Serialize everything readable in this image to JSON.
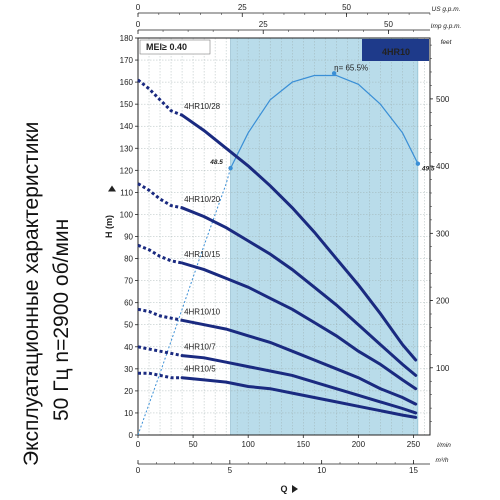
{
  "side_title": {
    "line1": "Эксплуатационные характеристики",
    "line2": "50 Гц  n=2900 об/мин"
  },
  "colors": {
    "curve": "#1a2a80",
    "efficiency": "#3a8fd6",
    "band": "#b9dcea",
    "badge": "#1e3a8a"
  },
  "chart_data": {
    "type": "line",
    "badge": "4HR10",
    "mei": "MEI≥ 0.40",
    "y_left_label": "H (m)",
    "y_left_ticks": [
      "0",
      "10",
      "20",
      "30",
      "40",
      "50",
      "60",
      "70",
      "80",
      "90",
      "100",
      "110",
      "120",
      "130",
      "140",
      "150",
      "160",
      "170",
      "180"
    ],
    "y_right_label": "feet",
    "y_right_ticks": [
      "100",
      "200",
      "300",
      "400",
      "500"
    ],
    "x_bottom_label": "Q",
    "x_lmin_unit": "l/min",
    "x_lmin_ticks": [
      "0",
      "50",
      "100",
      "150",
      "200",
      "250"
    ],
    "x_m3h_unit": "m³/h",
    "x_m3h_ticks": [
      "0",
      "5",
      "10",
      "15"
    ],
    "x_us_unit": "US g.p.m.",
    "x_us_ticks": [
      "0",
      "25",
      "50"
    ],
    "x_imp_unit": "Imp g.p.m.",
    "x_imp_ticks": [
      "0",
      "25",
      "50"
    ],
    "xlim": [
      0,
      265
    ],
    "ylim": [
      0,
      180
    ],
    "band": [
      84,
      254
    ],
    "series": [
      {
        "name": "4HR10/28",
        "dashed": [
          [
            0,
            161
          ],
          [
            10,
            157
          ],
          [
            20,
            152
          ],
          [
            30,
            147
          ],
          [
            40,
            145
          ]
        ],
        "solid": [
          [
            40,
            145
          ],
          [
            60,
            138
          ],
          [
            80,
            130
          ],
          [
            100,
            122
          ],
          [
            120,
            113
          ],
          [
            140,
            103
          ],
          [
            160,
            92
          ],
          [
            180,
            80
          ],
          [
            200,
            68
          ],
          [
            220,
            55
          ],
          [
            240,
            41
          ],
          [
            252,
            34
          ]
        ]
      },
      {
        "name": "4HR10/20",
        "dashed": [
          [
            0,
            114
          ],
          [
            10,
            111
          ],
          [
            20,
            107
          ],
          [
            30,
            104
          ],
          [
            40,
            103
          ]
        ],
        "solid": [
          [
            40,
            103
          ],
          [
            60,
            99
          ],
          [
            80,
            94
          ],
          [
            100,
            88
          ],
          [
            120,
            82
          ],
          [
            140,
            75
          ],
          [
            160,
            67
          ],
          [
            180,
            59
          ],
          [
            200,
            50
          ],
          [
            220,
            41
          ],
          [
            240,
            32
          ],
          [
            252,
            27
          ]
        ]
      },
      {
        "name": "4HR10/15",
        "dashed": [
          [
            0,
            86
          ],
          [
            10,
            84
          ],
          [
            20,
            81
          ],
          [
            30,
            79
          ],
          [
            40,
            78
          ]
        ],
        "solid": [
          [
            40,
            78
          ],
          [
            60,
            75
          ],
          [
            80,
            71
          ],
          [
            100,
            67
          ],
          [
            120,
            62
          ],
          [
            140,
            57
          ],
          [
            160,
            51
          ],
          [
            180,
            45
          ],
          [
            200,
            38
          ],
          [
            220,
            32
          ],
          [
            240,
            25
          ],
          [
            252,
            21
          ]
        ]
      },
      {
        "name": "4HR10/10",
        "dashed": [
          [
            0,
            57
          ],
          [
            10,
            56
          ],
          [
            20,
            54
          ],
          [
            30,
            53
          ],
          [
            40,
            52
          ]
        ],
        "solid": [
          [
            40,
            52
          ],
          [
            60,
            50
          ],
          [
            80,
            48
          ],
          [
            100,
            45
          ],
          [
            120,
            42
          ],
          [
            140,
            38
          ],
          [
            160,
            34
          ],
          [
            180,
            30
          ],
          [
            200,
            26
          ],
          [
            220,
            21
          ],
          [
            240,
            17
          ],
          [
            252,
            14
          ]
        ]
      },
      {
        "name": "4HR10/7",
        "dashed": [
          [
            0,
            40
          ],
          [
            10,
            39
          ],
          [
            20,
            38
          ],
          [
            30,
            37
          ],
          [
            40,
            36
          ]
        ],
        "solid": [
          [
            40,
            36
          ],
          [
            60,
            35
          ],
          [
            80,
            33
          ],
          [
            100,
            31
          ],
          [
            120,
            29
          ],
          [
            140,
            27
          ],
          [
            160,
            24
          ],
          [
            180,
            21
          ],
          [
            200,
            18
          ],
          [
            220,
            15
          ],
          [
            240,
            12
          ],
          [
            252,
            10
          ]
        ]
      },
      {
        "name": "4HR10/5",
        "dashed": [
          [
            0,
            28
          ],
          [
            10,
            28
          ],
          [
            20,
            27
          ],
          [
            30,
            26
          ],
          [
            40,
            26
          ]
        ],
        "solid": [
          [
            40,
            26
          ],
          [
            60,
            25
          ],
          [
            80,
            24
          ],
          [
            100,
            22
          ],
          [
            120,
            21
          ],
          [
            140,
            19
          ],
          [
            160,
            17
          ],
          [
            180,
            15
          ],
          [
            200,
            13
          ],
          [
            220,
            11
          ],
          [
            240,
            9
          ],
          [
            252,
            8
          ]
        ]
      }
    ],
    "efficiency": {
      "dashed": [
        [
          0,
          0
        ],
        [
          20,
          28
        ],
        [
          40,
          57
        ],
        [
          60,
          86
        ],
        [
          80,
          114
        ],
        [
          84,
          121
        ]
      ],
      "solid": [
        [
          84,
          121
        ],
        [
          100,
          137
        ],
        [
          120,
          152
        ],
        [
          140,
          160
        ],
        [
          160,
          163
        ],
        [
          180,
          163
        ],
        [
          200,
          159
        ],
        [
          220,
          150
        ],
        [
          240,
          137
        ],
        [
          254,
          123
        ]
      ],
      "peak": {
        "q": 178,
        "h": 164,
        "label": "η= 65.5%"
      },
      "start": {
        "q": 84,
        "h": 121,
        "label": "48.5"
      },
      "end": {
        "q": 254,
        "h": 123,
        "label": "49.5"
      }
    }
  }
}
